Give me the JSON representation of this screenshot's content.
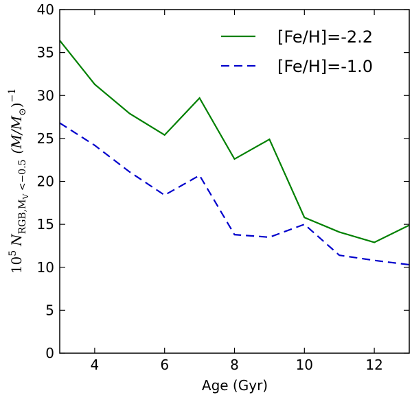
{
  "chart_data": {
    "type": "line",
    "title": "",
    "xlabel": "Age (Gyr)",
    "ylabel": "10⁵ N RGB,MV <−0.5 (M/M⊙)⁻¹",
    "ylabel_parts": {
      "base": "10",
      "base_exp": "5",
      "n": "N",
      "n_sub": "RGB,M",
      "n_sub_sub": "V",
      "n_sub_tail": " <−0.5",
      "paren_expr": "(M/M",
      "sun": "⊙",
      "paren_close": ")",
      "exp": "−1"
    },
    "xlim": [
      3,
      13
    ],
    "ylim": [
      0,
      40
    ],
    "xticks": [
      4,
      6,
      8,
      10,
      12
    ],
    "yticks": [
      0,
      5,
      10,
      15,
      20,
      25,
      30,
      35,
      40
    ],
    "x": [
      3,
      4,
      5,
      6,
      7,
      8,
      9,
      10,
      11,
      12,
      13
    ],
    "series": [
      {
        "name": "[Fe/H]=-2.2",
        "color": "#008000",
        "style": "solid",
        "values": [
          36.4,
          31.3,
          27.9,
          25.4,
          29.7,
          22.6,
          24.9,
          15.8,
          14.1,
          12.9,
          14.9
        ]
      },
      {
        "name": "[Fe/H]=-1.0",
        "color": "#0000cc",
        "style": "dashed",
        "values": [
          26.8,
          24.2,
          21.1,
          18.4,
          20.7,
          13.8,
          13.5,
          15.0,
          11.4,
          10.8,
          10.3
        ]
      }
    ],
    "legend_position": "top-right",
    "grid": false
  }
}
